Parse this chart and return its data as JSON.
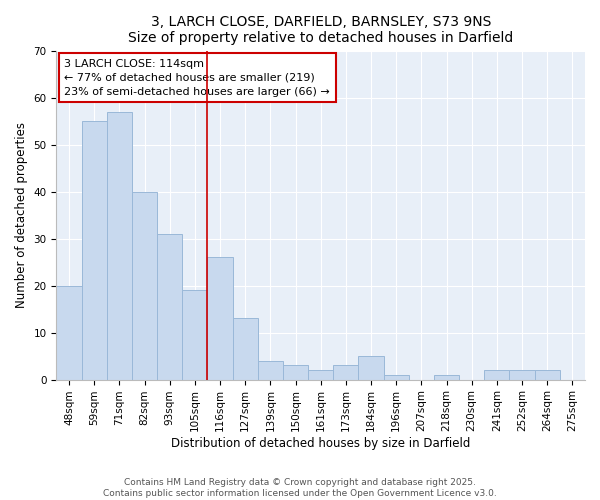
{
  "title": "3, LARCH CLOSE, DARFIELD, BARNSLEY, S73 9NS",
  "subtitle": "Size of property relative to detached houses in Darfield",
  "xlabel": "Distribution of detached houses by size in Darfield",
  "ylabel": "Number of detached properties",
  "categories": [
    "48sqm",
    "59sqm",
    "71sqm",
    "82sqm",
    "93sqm",
    "105sqm",
    "116sqm",
    "127sqm",
    "139sqm",
    "150sqm",
    "161sqm",
    "173sqm",
    "184sqm",
    "196sqm",
    "207sqm",
    "218sqm",
    "230sqm",
    "241sqm",
    "252sqm",
    "264sqm",
    "275sqm"
  ],
  "values": [
    20,
    55,
    57,
    40,
    31,
    19,
    26,
    13,
    4,
    3,
    2,
    3,
    5,
    1,
    0,
    1,
    0,
    2,
    2,
    2,
    0
  ],
  "bar_color": "#c8d9ee",
  "bar_edge_color": "#9ab8d8",
  "highlight_line_index": 6,
  "annotation_title": "3 LARCH CLOSE: 114sqm",
  "annotation_line1": "← 77% of detached houses are smaller (219)",
  "annotation_line2": "23% of semi-detached houses are larger (66) →",
  "annotation_box_color": "#cc0000",
  "ylim": [
    0,
    70
  ],
  "yticks": [
    0,
    10,
    20,
    30,
    40,
    50,
    60,
    70
  ],
  "bg_color": "#e8eff8",
  "background_color": "#ffffff",
  "footer_line1": "Contains HM Land Registry data © Crown copyright and database right 2025.",
  "footer_line2": "Contains public sector information licensed under the Open Government Licence v3.0.",
  "title_fontsize": 10,
  "label_fontsize": 8.5,
  "tick_fontsize": 7.5,
  "annotation_fontsize": 8,
  "footer_fontsize": 6.5
}
